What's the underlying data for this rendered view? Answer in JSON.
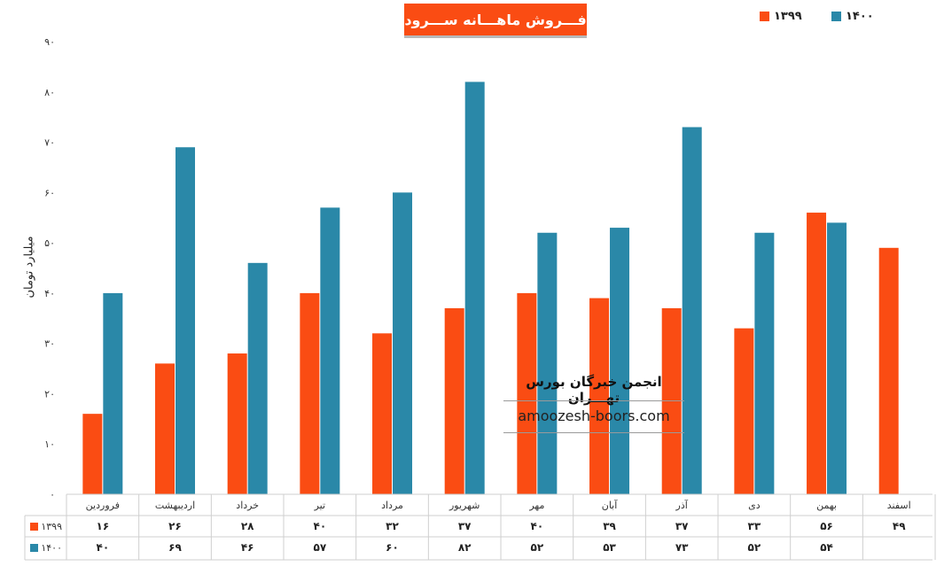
{
  "chart_data": {
    "type": "bar",
    "title": "فـــروش ماهـــانه ســـرود",
    "ylabel": "میلیارد تومان",
    "ylim": [
      0,
      90
    ],
    "yticks": [
      "۰",
      "۱۰",
      "۲۰",
      "۳۰",
      "۴۰",
      "۵۰",
      "۶۰",
      "۷۰",
      "۸۰",
      "۹۰"
    ],
    "categories": [
      "فروردین",
      "اردیبهشت",
      "خرداد",
      "تیر",
      "مرداد",
      "شهریور",
      "مهر",
      "آبان",
      "آذر",
      "دی",
      "بهمن",
      "اسفند"
    ],
    "series": [
      {
        "name": "۱۳۹۹",
        "color": "#fa4c13",
        "values": [
          16,
          26,
          28,
          40,
          32,
          37,
          40,
          39,
          37,
          33,
          56,
          49
        ],
        "labels": [
          "۱۶",
          "۲۶",
          "۲۸",
          "۴۰",
          "۳۲",
          "۳۷",
          "۴۰",
          "۳۹",
          "۳۷",
          "۳۳",
          "۵۶",
          "۴۹"
        ]
      },
      {
        "name": "۱۴۰۰",
        "color": "#2a88a8",
        "values": [
          40,
          69,
          46,
          57,
          60,
          82,
          52,
          53,
          73,
          52,
          54,
          null
        ],
        "labels": [
          "۴۰",
          "۶۹",
          "۴۶",
          "۵۷",
          "۶۰",
          "۸۲",
          "۵۲",
          "۵۳",
          "۷۳",
          "۵۲",
          "۵۴",
          ""
        ]
      }
    ],
    "legend_position": "top-right",
    "grid": false
  },
  "watermark": {
    "title": "انجمن خبرگان بورس تهـــران",
    "url": "amoozesh-boors.com"
  }
}
